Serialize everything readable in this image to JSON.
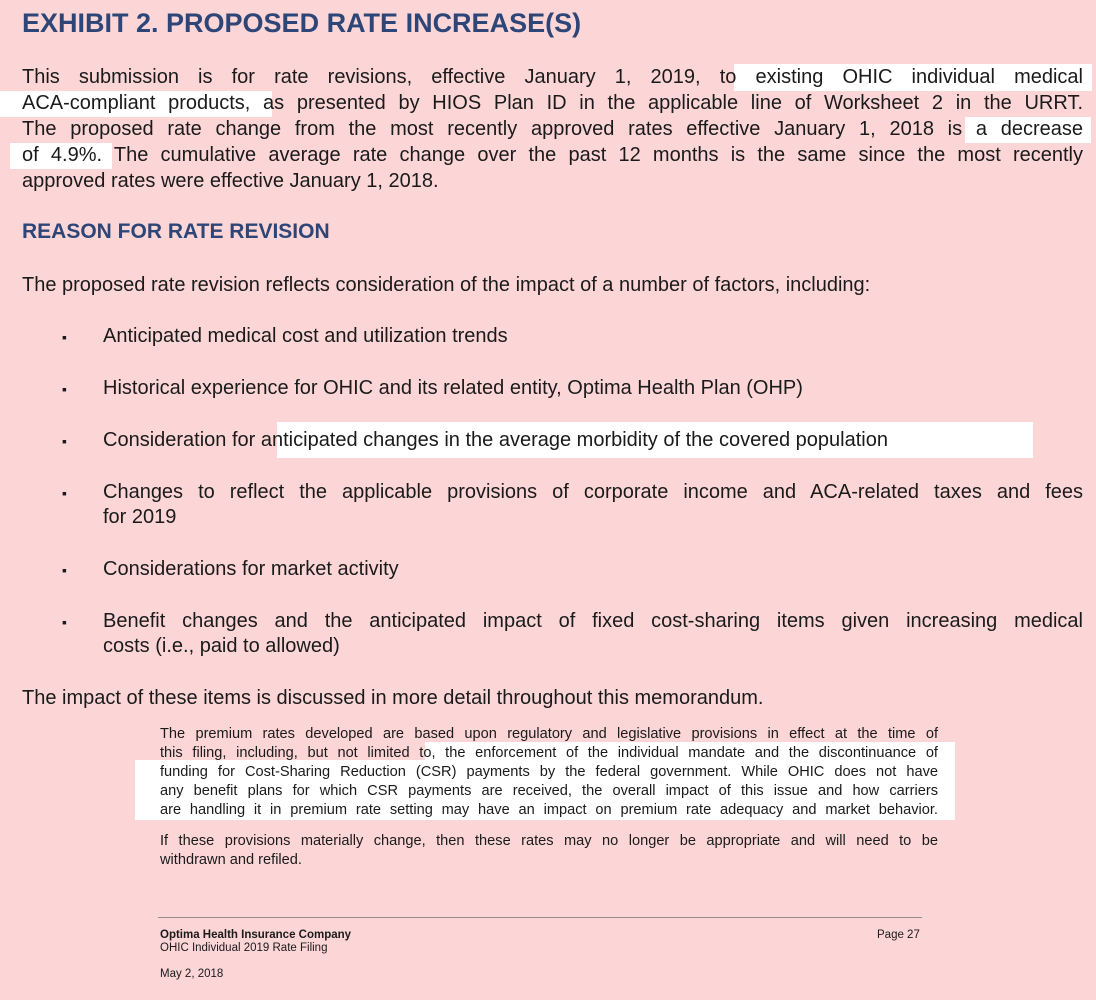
{
  "title": "EXHIBIT 2.  PROPOSED RATE INCREASE(S)",
  "intro_lines": [
    [
      "This submission is for rate revisions, effective January 1, 2019, to ",
      "existing OHIC individual medical"
    ],
    [
      "ACA-compliant products,",
      " as presented by HIOS Plan ID in the applicable line of Worksheet 2 in the URRT."
    ],
    [
      "The proposed rate change from the most recently approved rates effective January 1, 2018 is ",
      "a decrease"
    ],
    [
      "of 4.9%.",
      " The cumulative average rate change over the past 12 months is the same since the most recently"
    ],
    [
      "approved rates were effective January 1, 2018."
    ]
  ],
  "section_heading": "REASON FOR RATE REVISION",
  "lead_in": "The proposed rate revision reflects consideration of the impact of a number of factors, including:",
  "bullet_glyph": "▪",
  "bullets": [
    {
      "lines": [
        "Anticipated medical cost and utilization trends"
      ]
    },
    {
      "lines": [
        "Historical experience for OHIC and its related entity, Optima Health Plan (OHP)"
      ]
    },
    {
      "pre": "Consideration for ",
      "highlight": "anticipated changes in the average morbidity of the covered population"
    },
    {
      "lines": [
        "Changes to reflect the applicable provisions of corporate income and ACA-related taxes and fees",
        "for 2019"
      ]
    },
    {
      "lines": [
        "Considerations for market activity"
      ]
    },
    {
      "lines": [
        "Benefit changes and the anticipated impact of fixed cost-sharing items given increasing medical",
        "costs (i.e., paid to allowed)"
      ]
    }
  ],
  "closing": "The impact of these items is discussed in more detail throughout this memorandum.",
  "note_lines": [
    "The premium rates developed are based upon regulatory and legislative provisions in effect at the time of",
    "this filing, including, but not limited to, the enforcement of the individual mandate and the discontinuance of",
    "funding for Cost-Sharing Reduction (CSR) payments by the federal government. While OHIC does not have",
    "any benefit plans for which CSR payments are received, the overall impact of this issue and how carriers",
    "are handling it in premium rate setting may have an impact on premium rate adequacy and market behavior."
  ],
  "note2_lines": [
    "If these provisions materially change, then these rates may no longer be appropriate and will need to be",
    "withdrawn and refiled."
  ],
  "footer": {
    "company": "Optima Health Insurance Company",
    "filing": "OHIC Individual 2019 Rate Filing",
    "date": "May 2, 2018",
    "page": "Page 27"
  },
  "colors": {
    "background": "#fcd6d7",
    "heading": "#2d4677",
    "highlight": "#ffffff"
  }
}
